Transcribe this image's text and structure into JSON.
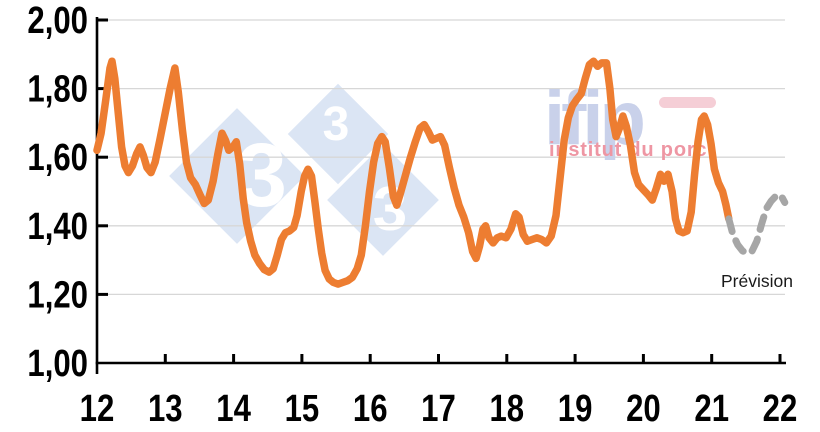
{
  "chart_data": {
    "type": "line",
    "title": "",
    "x_axis": {
      "ticks": [
        12,
        13,
        14,
        15,
        16,
        17,
        18,
        19,
        20,
        21,
        22
      ],
      "labels": [
        "12",
        "13",
        "14",
        "15",
        "16",
        "17",
        "18",
        "19",
        "20",
        "21",
        "22"
      ],
      "range": [
        12,
        22.1
      ]
    },
    "y_axis": {
      "ticks": [
        1.0,
        1.2,
        1.4,
        1.6,
        1.8,
        2.0
      ],
      "labels": [
        "1,00",
        "1,20",
        "1,40",
        "1,60",
        "1,80",
        "2,00"
      ],
      "range": [
        1.0,
        2.0
      ],
      "grid": true
    },
    "grid_color": "#D7D7D7",
    "axis_color": "#000000",
    "series": [
      {
        "name": "prix-historique",
        "style": "solid",
        "color": "#ED7D31",
        "stroke_width": 7.5,
        "points": [
          [
            12.0,
            1.62
          ],
          [
            12.06,
            1.67
          ],
          [
            12.13,
            1.77
          ],
          [
            12.19,
            1.86
          ],
          [
            12.22,
            1.88
          ],
          [
            12.26,
            1.83
          ],
          [
            12.31,
            1.73
          ],
          [
            12.36,
            1.63
          ],
          [
            12.41,
            1.575
          ],
          [
            12.46,
            1.555
          ],
          [
            12.52,
            1.575
          ],
          [
            12.58,
            1.61
          ],
          [
            12.63,
            1.63
          ],
          [
            12.68,
            1.605
          ],
          [
            12.73,
            1.57
          ],
          [
            12.79,
            1.555
          ],
          [
            12.85,
            1.585
          ],
          [
            12.92,
            1.65
          ],
          [
            13.0,
            1.73
          ],
          [
            13.07,
            1.8
          ],
          [
            13.14,
            1.86
          ],
          [
            13.19,
            1.79
          ],
          [
            13.25,
            1.68
          ],
          [
            13.31,
            1.585
          ],
          [
            13.37,
            1.54
          ],
          [
            13.44,
            1.52
          ],
          [
            13.51,
            1.49
          ],
          [
            13.57,
            1.465
          ],
          [
            13.63,
            1.475
          ],
          [
            13.7,
            1.53
          ],
          [
            13.77,
            1.61
          ],
          [
            13.83,
            1.67
          ],
          [
            13.88,
            1.65
          ],
          [
            13.93,
            1.62
          ],
          [
            13.99,
            1.63
          ],
          [
            14.04,
            1.645
          ],
          [
            14.09,
            1.58
          ],
          [
            14.14,
            1.48
          ],
          [
            14.19,
            1.41
          ],
          [
            14.25,
            1.355
          ],
          [
            14.31,
            1.315
          ],
          [
            14.38,
            1.29
          ],
          [
            14.45,
            1.272
          ],
          [
            14.52,
            1.265
          ],
          [
            14.58,
            1.275
          ],
          [
            14.64,
            1.315
          ],
          [
            14.7,
            1.36
          ],
          [
            14.76,
            1.38
          ],
          [
            14.82,
            1.385
          ],
          [
            14.88,
            1.395
          ],
          [
            14.93,
            1.43
          ],
          [
            14.99,
            1.5
          ],
          [
            15.04,
            1.545
          ],
          [
            15.09,
            1.565
          ],
          [
            15.14,
            1.545
          ],
          [
            15.19,
            1.47
          ],
          [
            15.24,
            1.39
          ],
          [
            15.29,
            1.32
          ],
          [
            15.34,
            1.27
          ],
          [
            15.4,
            1.245
          ],
          [
            15.46,
            1.235
          ],
          [
            15.53,
            1.23
          ],
          [
            15.6,
            1.235
          ],
          [
            15.67,
            1.24
          ],
          [
            15.74,
            1.25
          ],
          [
            15.81,
            1.275
          ],
          [
            15.87,
            1.315
          ],
          [
            15.93,
            1.4
          ],
          [
            15.99,
            1.5
          ],
          [
            16.05,
            1.585
          ],
          [
            16.11,
            1.64
          ],
          [
            16.17,
            1.66
          ],
          [
            16.22,
            1.645
          ],
          [
            16.28,
            1.57
          ],
          [
            16.34,
            1.485
          ],
          [
            16.39,
            1.46
          ],
          [
            16.45,
            1.5
          ],
          [
            16.52,
            1.55
          ],
          [
            16.59,
            1.6
          ],
          [
            16.66,
            1.645
          ],
          [
            16.73,
            1.685
          ],
          [
            16.79,
            1.695
          ],
          [
            16.85,
            1.675
          ],
          [
            16.91,
            1.65
          ],
          [
            16.97,
            1.655
          ],
          [
            17.03,
            1.66
          ],
          [
            17.09,
            1.635
          ],
          [
            17.16,
            1.57
          ],
          [
            17.23,
            1.51
          ],
          [
            17.3,
            1.46
          ],
          [
            17.37,
            1.425
          ],
          [
            17.44,
            1.38
          ],
          [
            17.5,
            1.325
          ],
          [
            17.55,
            1.305
          ],
          [
            17.6,
            1.34
          ],
          [
            17.65,
            1.39
          ],
          [
            17.69,
            1.4
          ],
          [
            17.74,
            1.365
          ],
          [
            17.8,
            1.35
          ],
          [
            17.86,
            1.365
          ],
          [
            17.92,
            1.37
          ],
          [
            17.99,
            1.365
          ],
          [
            18.06,
            1.39
          ],
          [
            18.13,
            1.435
          ],
          [
            18.18,
            1.425
          ],
          [
            18.24,
            1.375
          ],
          [
            18.3,
            1.355
          ],
          [
            18.37,
            1.36
          ],
          [
            18.44,
            1.365
          ],
          [
            18.51,
            1.36
          ],
          [
            18.58,
            1.35
          ],
          [
            18.65,
            1.37
          ],
          [
            18.72,
            1.43
          ],
          [
            18.78,
            1.54
          ],
          [
            18.84,
            1.65
          ],
          [
            18.9,
            1.715
          ],
          [
            18.96,
            1.75
          ],
          [
            19.03,
            1.77
          ],
          [
            19.09,
            1.785
          ],
          [
            19.15,
            1.83
          ],
          [
            19.21,
            1.87
          ],
          [
            19.27,
            1.88
          ],
          [
            19.33,
            1.865
          ],
          [
            19.39,
            1.875
          ],
          [
            19.46,
            1.875
          ],
          [
            19.51,
            1.8
          ],
          [
            19.55,
            1.71
          ],
          [
            19.6,
            1.66
          ],
          [
            19.65,
            1.685
          ],
          [
            19.7,
            1.72
          ],
          [
            19.75,
            1.69
          ],
          [
            19.81,
            1.635
          ],
          [
            19.87,
            1.555
          ],
          [
            19.93,
            1.52
          ],
          [
            20.0,
            1.505
          ],
          [
            20.07,
            1.49
          ],
          [
            20.13,
            1.475
          ],
          [
            20.19,
            1.51
          ],
          [
            20.25,
            1.55
          ],
          [
            20.3,
            1.53
          ],
          [
            20.36,
            1.55
          ],
          [
            20.42,
            1.5
          ],
          [
            20.47,
            1.42
          ],
          [
            20.52,
            1.385
          ],
          [
            20.58,
            1.38
          ],
          [
            20.64,
            1.385
          ],
          [
            20.7,
            1.44
          ],
          [
            20.75,
            1.55
          ],
          [
            20.8,
            1.645
          ],
          [
            20.85,
            1.71
          ],
          [
            20.89,
            1.72
          ],
          [
            20.94,
            1.695
          ],
          [
            20.99,
            1.64
          ],
          [
            21.04,
            1.565
          ],
          [
            21.1,
            1.525
          ],
          [
            21.16,
            1.5
          ],
          [
            21.21,
            1.46
          ],
          [
            21.25,
            1.42
          ]
        ]
      },
      {
        "name": "prevision",
        "style": "dashed",
        "color": "#A6A6A6",
        "stroke_width": 7,
        "points": [
          [
            21.25,
            1.42
          ],
          [
            21.31,
            1.375
          ],
          [
            21.38,
            1.345
          ],
          [
            21.45,
            1.327
          ],
          [
            21.52,
            1.32
          ],
          [
            21.59,
            1.326
          ],
          [
            21.66,
            1.355
          ],
          [
            21.73,
            1.405
          ],
          [
            21.8,
            1.45
          ],
          [
            21.87,
            1.472
          ],
          [
            21.94,
            1.487
          ],
          [
            22.01,
            1.49
          ],
          [
            22.07,
            1.468
          ]
        ]
      }
    ],
    "annotations": [
      {
        "text": "Prévision",
        "color": "#1A1A1A"
      }
    ]
  },
  "watermarks": {
    "pig333": {
      "digits": [
        "3",
        "3",
        "3"
      ],
      "diamond_color": "#DBE5F4",
      "digit_color": "#FFFFFF"
    },
    "ifip": {
      "name": "ifip",
      "subtitle": "institut du porc",
      "name_color": "#C9D1EA",
      "dash_color": "#F5CED6",
      "subtitle_color": "#EE96A3"
    }
  }
}
